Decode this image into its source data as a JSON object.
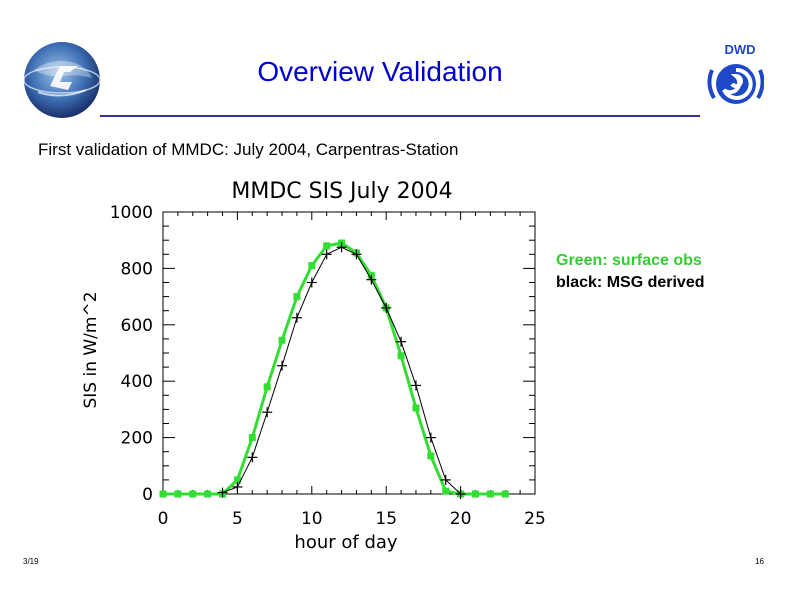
{
  "header": {
    "title": "Overview Validation",
    "subtitle": "First validation of MMDC: July 2004, Carpentras-Station"
  },
  "logos": {
    "left": "saf-logo",
    "right_text": "DWD"
  },
  "legend": {
    "green_label": "Green: surface obs",
    "black_label": "black: MSG derived"
  },
  "footer": {
    "left": "3/19",
    "right": "16"
  },
  "colors": {
    "title": "#0000cc",
    "green_series": "#33dd33",
    "black_series": "#000000"
  },
  "chart_data": {
    "type": "line",
    "title": "MMDC SIS July 2004",
    "xlabel": "hour of day",
    "ylabel": "SIS in W/m^2",
    "xlim": [
      0,
      25
    ],
    "ylim": [
      0,
      1000
    ],
    "xticks": [
      0,
      5,
      10,
      15,
      20,
      25
    ],
    "yticks": [
      0,
      200,
      400,
      600,
      800,
      1000
    ],
    "series": [
      {
        "name": "surface obs",
        "color": "#33dd33",
        "marker": "square",
        "x": [
          0,
          1,
          2,
          3,
          4,
          5,
          6,
          7,
          8,
          9,
          10,
          11,
          12,
          13,
          14,
          15,
          16,
          17,
          18,
          19,
          20,
          21,
          22,
          23
        ],
        "y": [
          0,
          0,
          0,
          0,
          0,
          50,
          200,
          380,
          545,
          700,
          810,
          880,
          890,
          855,
          775,
          660,
          490,
          305,
          135,
          10,
          0,
          0,
          0,
          0
        ]
      },
      {
        "name": "MSG derived",
        "color": "#000000",
        "marker": "plus",
        "x": [
          4,
          5,
          6,
          7,
          8,
          9,
          10,
          11,
          12,
          13,
          14,
          15,
          16,
          17,
          18,
          19,
          20
        ],
        "y": [
          5,
          25,
          130,
          290,
          455,
          625,
          750,
          850,
          875,
          850,
          760,
          660,
          540,
          385,
          200,
          50,
          0
        ]
      }
    ]
  }
}
